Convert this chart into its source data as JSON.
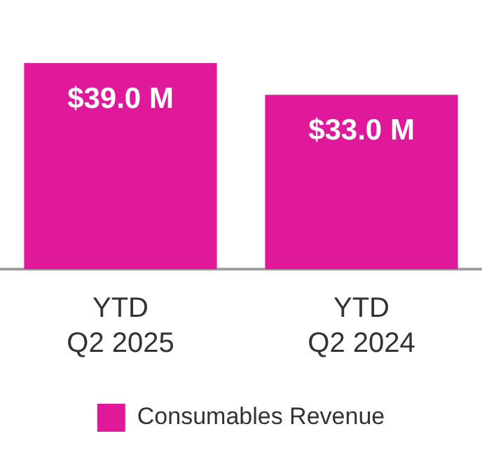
{
  "chart_data": {
    "type": "bar",
    "categories": [
      "YTD\nQ2 2025",
      "YTD\nQ2 2024"
    ],
    "series": [
      {
        "name": "Consumables Revenue",
        "color": "#e0189a",
        "values": [
          39.0,
          33.0
        ],
        "value_labels": [
          "$39.0 M",
          "$33.0 M"
        ]
      }
    ],
    "legend": "bottom",
    "grid": false
  }
}
